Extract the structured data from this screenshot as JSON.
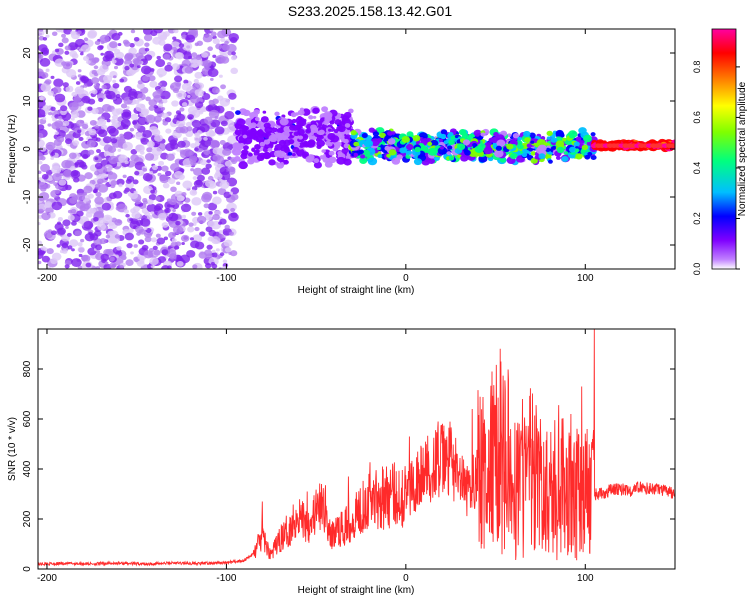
{
  "title": "S233.2025.158.13.42.G01",
  "chart_data": [
    {
      "type": "heatmap",
      "xlabel": "Height of straight line (km)",
      "ylabel": "Frequency (Hz)",
      "xlim": [
        -205,
        150
      ],
      "ylim": [
        -25,
        25
      ],
      "xticks": [
        -200,
        -100,
        0,
        100
      ],
      "yticks": [
        -20,
        -10,
        0,
        10,
        20
      ],
      "colorbar": {
        "label": "Normalized spectral amplitude",
        "range": [
          0,
          0.95
        ],
        "ticks": [
          0.0,
          0.2,
          0.4,
          0.6,
          0.8
        ],
        "tick_labels": [
          "0.0",
          "0.2",
          "0.4",
          "0.6",
          "0.8"
        ],
        "colormap": [
          "#ffffff",
          "#c080ff",
          "#7f00ff",
          "#0000ff",
          "#00bfff",
          "#00ff7f",
          "#7fff00",
          "#ffff00",
          "#ff7f00",
          "#ff0000",
          "#ff00a0"
        ]
      },
      "regions": [
        {
          "x_range": [
            -205,
            -95
          ],
          "freq_range": [
            -25,
            25
          ],
          "amplitude": [
            0.0,
            0.05
          ],
          "pattern": "broadband noise"
        },
        {
          "x_range": [
            -95,
            -30
          ],
          "freq_range": [
            -4,
            9
          ],
          "amplitude": [
            0.05,
            0.25
          ],
          "pattern": "band around 3 Hz"
        },
        {
          "x_range": [
            -30,
            105
          ],
          "freq_range": [
            -3,
            4
          ],
          "amplitude": [
            0.1,
            0.6
          ],
          "pattern": "narrow band near 0 Hz"
        },
        {
          "x_range": [
            105,
            150
          ],
          "freq_range": [
            0,
            1.5
          ],
          "amplitude": [
            0.8,
            0.95
          ],
          "pattern": "strong line near 0.7 Hz"
        }
      ]
    },
    {
      "type": "line",
      "xlabel": "Height of straight line (km)",
      "ylabel": "SNR (10 * v/v)",
      "xlim": [
        -205,
        150
      ],
      "ylim": [
        0,
        960
      ],
      "xticks": [
        -200,
        -100,
        0,
        100
      ],
      "yticks": [
        0,
        200,
        400,
        600,
        800
      ],
      "series": [
        {
          "color": "#ff2a2a",
          "x": [
            -205,
            -190,
            -175,
            -160,
            -145,
            -130,
            -115,
            -100,
            -90,
            -85,
            -80,
            -77,
            -75,
            -70,
            -65,
            -60,
            -55,
            -50,
            -45,
            -42,
            -40,
            -35,
            -30,
            -25,
            -20,
            -15,
            -10,
            -5,
            0,
            5,
            10,
            15,
            20,
            25,
            30,
            35,
            40,
            45,
            50,
            55,
            60,
            65,
            70,
            75,
            80,
            85,
            90,
            95,
            100,
            105,
            110,
            115,
            120,
            125,
            130,
            135,
            140,
            145,
            150
          ],
          "y": [
            20,
            22,
            21,
            23,
            20,
            24,
            22,
            25,
            35,
            60,
            130,
            80,
            60,
            120,
            160,
            220,
            180,
            230,
            250,
            120,
            150,
            160,
            200,
            250,
            300,
            280,
            290,
            300,
            300,
            350,
            380,
            420,
            430,
            440,
            350,
            300,
            400,
            350,
            450,
            500,
            300,
            350,
            400,
            300,
            300,
            350,
            300,
            300,
            300,
            300,
            300,
            320,
            320,
            310,
            330,
            320,
            320,
            310,
            300
          ],
          "spikes": [
            {
              "x": -80,
              "y": 270
            },
            {
              "x": -55,
              "y": 310
            },
            {
              "x": -32,
              "y": 370
            },
            {
              "x": -13,
              "y": 410
            },
            {
              "x": 2,
              "y": 530
            },
            {
              "x": 18,
              "y": 590
            },
            {
              "x": 37,
              "y": 640
            },
            {
              "x": 48,
              "y": 790
            },
            {
              "x": 53,
              "y": 830
            },
            {
              "x": 65,
              "y": 680
            },
            {
              "x": 75,
              "y": 600
            },
            {
              "x": 85,
              "y": 560
            },
            {
              "x": 92,
              "y": 620
            },
            {
              "x": 98,
              "y": 730
            },
            {
              "x": 105,
              "y": 960
            }
          ]
        }
      ]
    }
  ]
}
